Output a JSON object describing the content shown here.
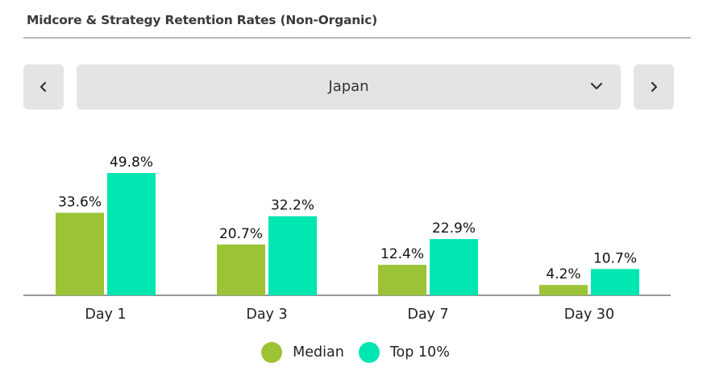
{
  "header": {
    "title": "Midcore & Strategy Retention Rates (Non-Organic)"
  },
  "navigation": {
    "prev_icon": "chevron-left-icon",
    "next_icon": "chevron-right-icon",
    "dropdown_icon": "chevron-down-icon"
  },
  "region_selector": {
    "selected": "Japan"
  },
  "colors": {
    "median": "#9cc335",
    "top10": "#00e6b0",
    "axis": "#777777"
  },
  "chart_data": {
    "type": "bar",
    "title": "Midcore & Strategy Retention Rates (Non-Organic)",
    "categories": [
      "Day 1",
      "Day 3",
      "Day 7",
      "Day 30"
    ],
    "series": [
      {
        "name": "Median",
        "values": [
          33.6,
          20.7,
          12.4,
          4.2
        ],
        "labels": [
          "33.6%",
          "20.7%",
          "12.4%",
          "4.2%"
        ]
      },
      {
        "name": "Top 10%",
        "values": [
          49.8,
          32.2,
          22.9,
          10.7
        ],
        "labels": [
          "49.8%",
          "32.2%",
          "22.9%",
          "10.7%"
        ]
      }
    ],
    "ylim": [
      0,
      50
    ],
    "grid": false,
    "legend_position": "bottom"
  }
}
